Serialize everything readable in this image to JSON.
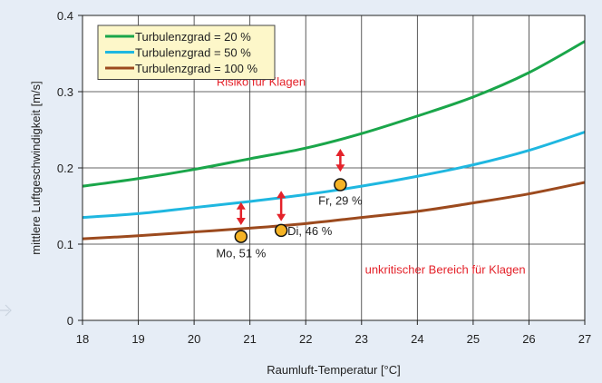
{
  "chart_data": {
    "type": "line",
    "xlabel": "Raumluft-Temperatur [°C]",
    "ylabel": "mittlere Luftgeschwindigkeit [m/s]",
    "xlim": [
      18,
      27
    ],
    "ylim": [
      0,
      0.4
    ],
    "x_ticks": [
      18,
      19,
      20,
      21,
      22,
      23,
      24,
      25,
      26,
      27
    ],
    "y_ticks": [
      0,
      0.1,
      0.2,
      0.3,
      0.4
    ],
    "grid": true,
    "legend_position": "top-left",
    "series": [
      {
        "name": "Turbulenzgrad = 20 %",
        "color": "#1aa64a",
        "x": [
          18,
          19,
          20,
          21,
          22,
          23,
          24,
          25,
          26,
          27
        ],
        "y": [
          0.176,
          0.186,
          0.198,
          0.212,
          0.226,
          0.245,
          0.268,
          0.293,
          0.325,
          0.366
        ]
      },
      {
        "name": "Turbulenzgrad = 50 %",
        "color": "#1fb7e0",
        "x": [
          18,
          19,
          20,
          21,
          22,
          23,
          24,
          25,
          26,
          27
        ],
        "y": [
          0.135,
          0.14,
          0.148,
          0.156,
          0.165,
          0.176,
          0.189,
          0.204,
          0.223,
          0.247
        ]
      },
      {
        "name": "Turbulenzgrad = 100 %",
        "color": "#9c4a1e",
        "x": [
          18,
          19,
          20,
          21,
          22,
          23,
          24,
          25,
          26,
          27
        ],
        "y": [
          0.107,
          0.111,
          0.116,
          0.121,
          0.127,
          0.135,
          0.143,
          0.154,
          0.166,
          0.181
        ]
      }
    ],
    "points": [
      {
        "label": "Mo, 51 %",
        "x": 20.84,
        "y": 0.11
      },
      {
        "label": "Di, 46 %",
        "x": 21.56,
        "y": 0.118
      },
      {
        "label": "Fr, 29 %",
        "x": 22.62,
        "y": 0.178
      }
    ],
    "point_color": "#f5b325",
    "arrows": [
      {
        "x": 20.84,
        "y_from": 0.125,
        "y_to": 0.155
      },
      {
        "x": 21.56,
        "y_from": 0.13,
        "y_to": 0.17
      },
      {
        "x": 22.62,
        "y_from": 0.195,
        "y_to": 0.225
      }
    ],
    "arrow_color": "#e4222a",
    "annotations": [
      {
        "text": "Risiko für Klagen",
        "x": 21.2,
        "y": 0.3075,
        "color": "#e4222a",
        "anchor": "middle"
      },
      {
        "text": "unkritischer Bereich für Klagen",
        "x": 24.5,
        "y": 0.0615,
        "color": "#e4222a",
        "anchor": "middle"
      }
    ]
  }
}
